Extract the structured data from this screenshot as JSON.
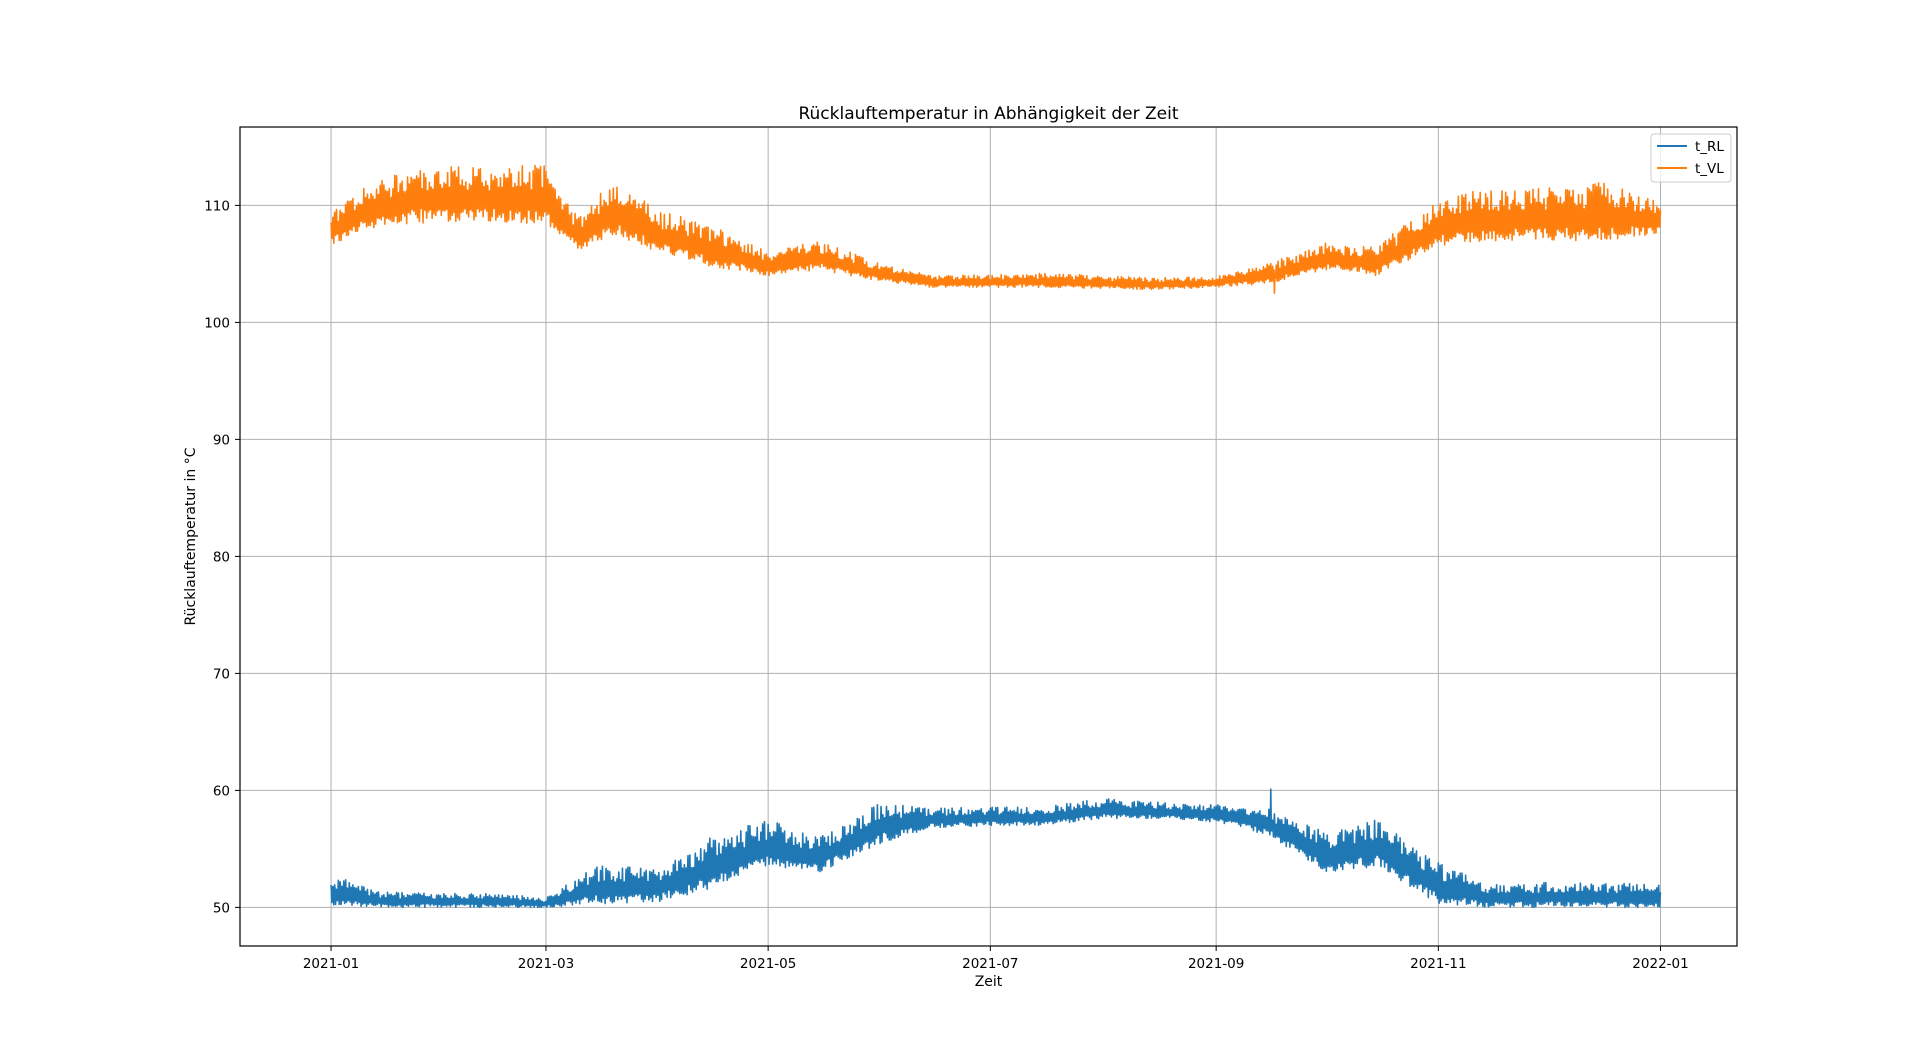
{
  "chart_data": {
    "type": "line",
    "title": "Rücklauftemperatur in Abhängigkeit der Zeit",
    "xlabel": "Zeit",
    "ylabel": "Rücklauftemperatur in °C",
    "x_type": "date",
    "xlim": [
      "2020-12-07",
      "2022-01-22"
    ],
    "ylim": [
      46.7,
      116.7
    ],
    "xticks": [
      {
        "date": "2021-01-01",
        "label": "2021-01"
      },
      {
        "date": "2021-03-01",
        "label": "2021-03"
      },
      {
        "date": "2021-05-01",
        "label": "2021-05"
      },
      {
        "date": "2021-07-01",
        "label": "2021-07"
      },
      {
        "date": "2021-09-01",
        "label": "2021-09"
      },
      {
        "date": "2021-11-01",
        "label": "2021-11"
      },
      {
        "date": "2022-01-01",
        "label": "2022-01"
      }
    ],
    "yticks": [
      50,
      60,
      70,
      80,
      90,
      100,
      110
    ],
    "grid": true,
    "legend_position": "top-right",
    "sample_interval": "daily",
    "start_date": "2021-01-01",
    "end_date": "2022-01-01",
    "series": [
      {
        "name": "t_RL",
        "color": "#1f77b4",
        "anchors": [
          {
            "date": "2021-01-01",
            "low": 50.2,
            "high": 52.8
          },
          {
            "date": "2021-01-15",
            "low": 50.0,
            "high": 51.3
          },
          {
            "date": "2021-02-15",
            "low": 50.0,
            "high": 51.2
          },
          {
            "date": "2021-03-01",
            "low": 50.0,
            "high": 50.8
          },
          {
            "date": "2021-03-15",
            "low": 50.3,
            "high": 53.6
          },
          {
            "date": "2021-04-01",
            "low": 50.5,
            "high": 53.5
          },
          {
            "date": "2021-04-15",
            "low": 51.5,
            "high": 56.0
          },
          {
            "date": "2021-05-01",
            "low": 53.5,
            "high": 57.5
          },
          {
            "date": "2021-05-15",
            "low": 53.0,
            "high": 56.0
          },
          {
            "date": "2021-06-01",
            "low": 55.5,
            "high": 59.0
          },
          {
            "date": "2021-06-15",
            "low": 56.8,
            "high": 58.5
          },
          {
            "date": "2021-07-01",
            "low": 57.0,
            "high": 58.6
          },
          {
            "date": "2021-07-15",
            "low": 57.0,
            "high": 58.6
          },
          {
            "date": "2021-08-01",
            "low": 57.6,
            "high": 59.3
          },
          {
            "date": "2021-08-15",
            "low": 57.6,
            "high": 59.0
          },
          {
            "date": "2021-09-01",
            "low": 57.3,
            "high": 58.8
          },
          {
            "date": "2021-09-15",
            "low": 56.2,
            "high": 58.5
          },
          {
            "date": "2021-10-01",
            "low": 53.0,
            "high": 56.5
          },
          {
            "date": "2021-10-15",
            "low": 53.5,
            "high": 57.5
          },
          {
            "date": "2021-11-01",
            "low": 50.3,
            "high": 53.8
          },
          {
            "date": "2021-11-15",
            "low": 50.0,
            "high": 52.0
          },
          {
            "date": "2021-12-01",
            "low": 50.0,
            "high": 52.2
          },
          {
            "date": "2022-01-01",
            "low": 50.0,
            "high": 52.0
          }
        ],
        "spikes": [
          {
            "date": "2021-09-16",
            "value": 60.1
          }
        ]
      },
      {
        "name": "t_VL",
        "color": "#ff7f0e",
        "anchors": [
          {
            "date": "2021-01-01",
            "low": 106.5,
            "high": 109.5
          },
          {
            "date": "2021-01-10",
            "low": 108.0,
            "high": 111.5
          },
          {
            "date": "2021-01-25",
            "low": 108.5,
            "high": 113.5
          },
          {
            "date": "2021-02-10",
            "low": 108.5,
            "high": 113.5
          },
          {
            "date": "2021-03-01",
            "low": 108.5,
            "high": 113.5
          },
          {
            "date": "2021-03-10",
            "low": 106.0,
            "high": 109.0
          },
          {
            "date": "2021-03-20",
            "low": 107.5,
            "high": 112.5
          },
          {
            "date": "2021-04-01",
            "low": 106.0,
            "high": 109.5
          },
          {
            "date": "2021-04-15",
            "low": 104.8,
            "high": 108.5
          },
          {
            "date": "2021-05-01",
            "low": 104.0,
            "high": 106.0
          },
          {
            "date": "2021-05-15",
            "low": 104.5,
            "high": 107.0
          },
          {
            "date": "2021-06-01",
            "low": 103.5,
            "high": 105.0
          },
          {
            "date": "2021-06-15",
            "low": 103.0,
            "high": 104.0
          },
          {
            "date": "2021-07-15",
            "low": 103.0,
            "high": 104.2
          },
          {
            "date": "2021-08-15",
            "low": 102.8,
            "high": 103.8
          },
          {
            "date": "2021-09-01",
            "low": 103.0,
            "high": 104.0
          },
          {
            "date": "2021-09-15",
            "low": 103.3,
            "high": 105.0
          },
          {
            "date": "2021-10-01",
            "low": 104.5,
            "high": 106.8
          },
          {
            "date": "2021-10-15",
            "low": 104.0,
            "high": 106.5
          },
          {
            "date": "2021-11-01",
            "low": 106.5,
            "high": 110.5
          },
          {
            "date": "2021-11-15",
            "low": 107.0,
            "high": 111.5
          },
          {
            "date": "2021-12-01",
            "low": 107.0,
            "high": 111.5
          },
          {
            "date": "2021-12-15",
            "low": 107.0,
            "high": 112.0
          },
          {
            "date": "2022-01-01",
            "low": 107.5,
            "high": 110.5
          }
        ],
        "spikes": [
          {
            "date": "2021-09-17",
            "value": 102.5
          }
        ]
      }
    ]
  }
}
